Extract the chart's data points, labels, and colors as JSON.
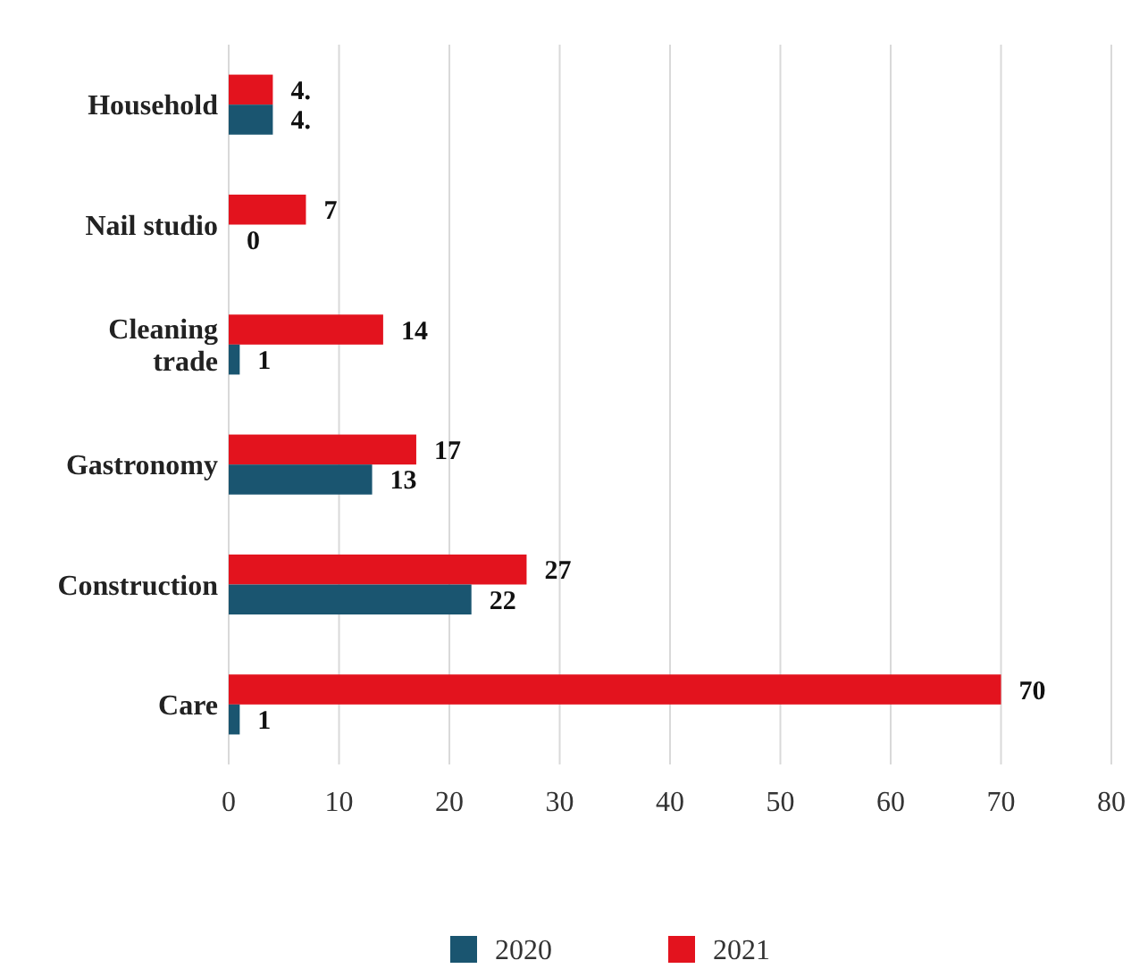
{
  "chart_data": {
    "type": "bar",
    "orientation": "horizontal",
    "categories": [
      "Household",
      "Nail studio",
      "Cleaning trade",
      "Gastronomy",
      "Construction",
      "Care"
    ],
    "series": [
      {
        "name": "2021",
        "color": "#e3131e",
        "values": [
          4,
          7,
          14,
          17,
          27,
          70
        ],
        "value_labels": [
          "4.",
          "7",
          "14",
          "17",
          "27",
          "70"
        ]
      },
      {
        "name": "2020",
        "color": "#1a5570",
        "values": [
          4,
          0,
          1,
          13,
          22,
          1
        ],
        "value_labels": [
          "4.",
          "0",
          "1",
          "13",
          "22",
          "1"
        ]
      }
    ],
    "xlim": [
      0,
      80
    ],
    "xticks": [
      0,
      10,
      20,
      30,
      40,
      50,
      60,
      70,
      80
    ],
    "grid": "x",
    "legend": "bottom"
  }
}
